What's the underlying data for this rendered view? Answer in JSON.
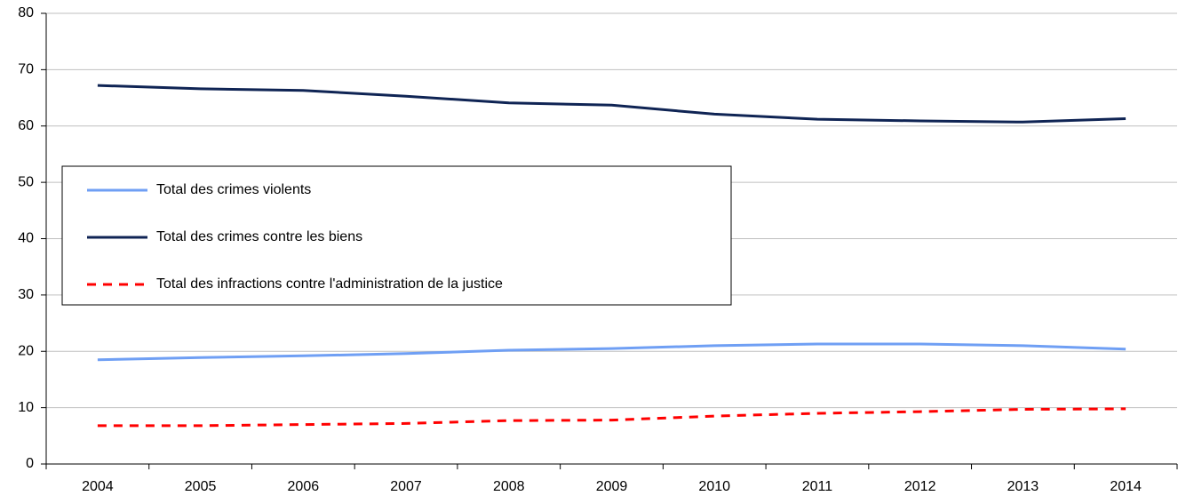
{
  "chart_data": {
    "type": "line",
    "categories": [
      "2004",
      "2005",
      "2006",
      "2007",
      "2008",
      "2009",
      "2010",
      "2011",
      "2012",
      "2013",
      "2014"
    ],
    "series": [
      {
        "name": "Total des crimes violents",
        "color": "#6f9ff4",
        "style": "solid",
        "values": [
          18.5,
          18.9,
          19.2,
          19.6,
          20.2,
          20.5,
          21.0,
          21.3,
          21.3,
          21.0,
          20.4
        ]
      },
      {
        "name": "Total des crimes contre les biens",
        "color": "#0f2454",
        "style": "solid",
        "values": [
          67.2,
          66.6,
          66.3,
          65.3,
          64.1,
          63.7,
          62.1,
          61.2,
          60.9,
          60.7,
          61.3
        ]
      },
      {
        "name": "Total des infractions contre l'administration de la justice",
        "color": "#ff0000",
        "style": "dashed",
        "values": [
          6.8,
          6.8,
          7.0,
          7.2,
          7.7,
          7.8,
          8.5,
          9.0,
          9.3,
          9.7,
          9.8
        ]
      }
    ],
    "ylim": [
      0,
      80
    ],
    "yticks": [
      0,
      10,
      20,
      30,
      40,
      50,
      60,
      70,
      80
    ],
    "grid": true,
    "legend": "center-left"
  }
}
